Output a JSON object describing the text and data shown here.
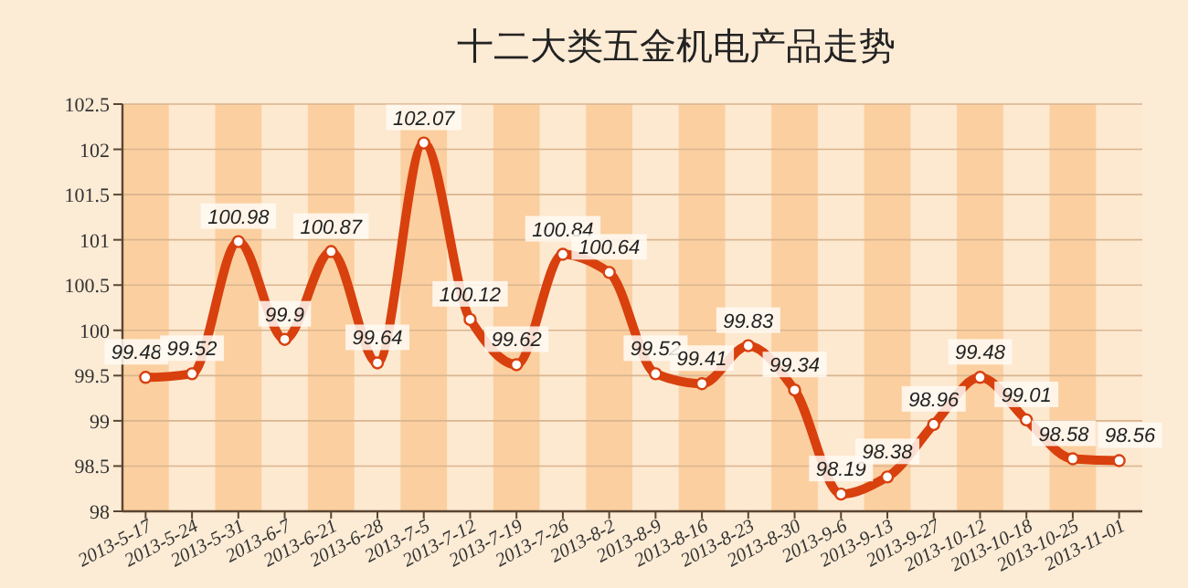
{
  "chart_data": {
    "type": "line",
    "title": "十二大类五金机电产品走势",
    "categories": [
      "2013-5-17",
      "2013-5-24",
      "2013-5-31",
      "2013-6-7",
      "2013-6-21",
      "2013-6-28",
      "2013-7-5",
      "2013-7-12",
      "2013-7-19",
      "2013-7-26",
      "2013-8-2",
      "2013-8-9",
      "2013-8-16",
      "2013-8-23",
      "2013-8-30",
      "2013-9-6",
      "2013-9-13",
      "2013-9-27",
      "2013-10-12",
      "2013-10-18",
      "2013-10-25",
      "2013-11-01"
    ],
    "series": [
      {
        "color": "#d8400e",
        "values": [
          99.48,
          99.52,
          100.98,
          99.9,
          100.87,
          99.64,
          102.07,
          100.12,
          99.62,
          100.84,
          100.64,
          99.52,
          99.41,
          99.83,
          99.34,
          98.19,
          98.38,
          98.96,
          99.48,
          99.01,
          98.58,
          98.56
        ]
      }
    ],
    "ylim": [
      98,
      102.5
    ],
    "yticks": [
      98,
      98.5,
      99,
      99.5,
      100,
      100.5,
      101,
      101.5,
      102,
      102.5
    ],
    "bands": [
      {
        "axis": "x",
        "from": "2013-5-17",
        "to": "2013-5-17",
        "color": "#fbcf9f"
      },
      {
        "axis": "x",
        "from": "2013-5-31",
        "to": "2013-5-31",
        "color": "#fbcf9f"
      },
      {
        "axis": "x",
        "from": "2013-6-21",
        "to": "2013-6-21",
        "color": "#fbcf9f"
      },
      {
        "axis": "x",
        "from": "2013-7-5",
        "to": "2013-7-5",
        "color": "#fbcf9f"
      },
      {
        "axis": "x",
        "from": "2013-7-19",
        "to": "2013-7-19",
        "color": "#fbcf9f"
      },
      {
        "axis": "x",
        "from": "2013-8-2",
        "to": "2013-8-2",
        "color": "#fbcf9f"
      },
      {
        "axis": "x",
        "from": "2013-8-16",
        "to": "2013-8-16",
        "color": "#fbcf9f"
      },
      {
        "axis": "x",
        "from": "2013-8-30",
        "to": "2013-8-30",
        "color": "#fbcf9f"
      },
      {
        "axis": "x",
        "from": "2013-9-13",
        "to": "2013-9-13",
        "color": "#fbcf9f"
      },
      {
        "axis": "x",
        "from": "2013-10-12",
        "to": "2013-10-12",
        "color": "#fbcf9f"
      },
      {
        "axis": "x",
        "from": "2013-10-25",
        "to": "2013-10-25",
        "color": "#fbcf9f"
      }
    ],
    "grid": "y",
    "marker": "circle",
    "line_style": "solid",
    "data_labels": true
  }
}
